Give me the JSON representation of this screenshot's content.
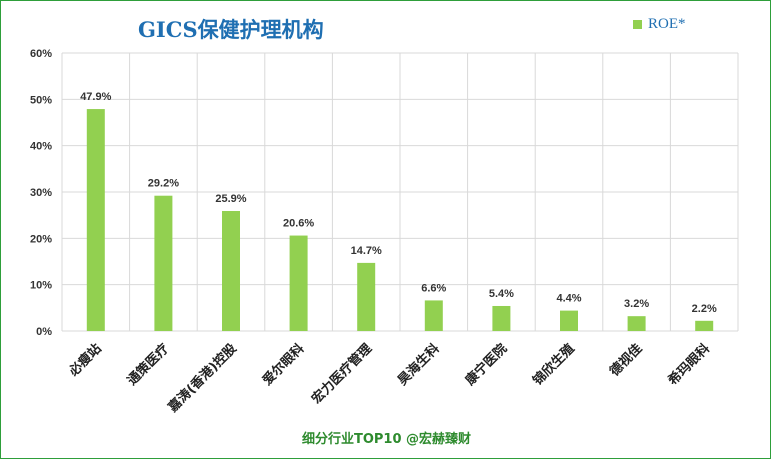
{
  "chart_data": {
    "type": "bar",
    "title": "GICS保健护理机构",
    "categories": [
      "必瘦站",
      "通策医疗",
      "嘉涛(香港)控股",
      "爱尔眼科",
      "宏力医疗管理",
      "昊海生科",
      "康宁医院",
      "锦欣生殖",
      "德视佳",
      "希玛眼科"
    ],
    "series": [
      {
        "name": "ROE*",
        "values": [
          47.9,
          29.2,
          25.9,
          20.6,
          14.7,
          6.6,
          5.4,
          4.4,
          3.2,
          2.2
        ]
      }
    ],
    "data_labels": [
      "47.9%",
      "29.2%",
      "25.9%",
      "20.6%",
      "14.7%",
      "6.6%",
      "5.4%",
      "4.4%",
      "3.2%",
      "2.2%"
    ],
    "yticks": [
      "0%",
      "10%",
      "20%",
      "30%",
      "40%",
      "50%",
      "60%"
    ],
    "ylim": [
      0,
      60
    ],
    "grid": true,
    "legend_position": "top-right",
    "bar_color": "#92d050",
    "title_color": "#1f6fb2",
    "border_color": "#2e9e3a"
  },
  "footer": "细分行业TOP10 @宏赫臻财"
}
